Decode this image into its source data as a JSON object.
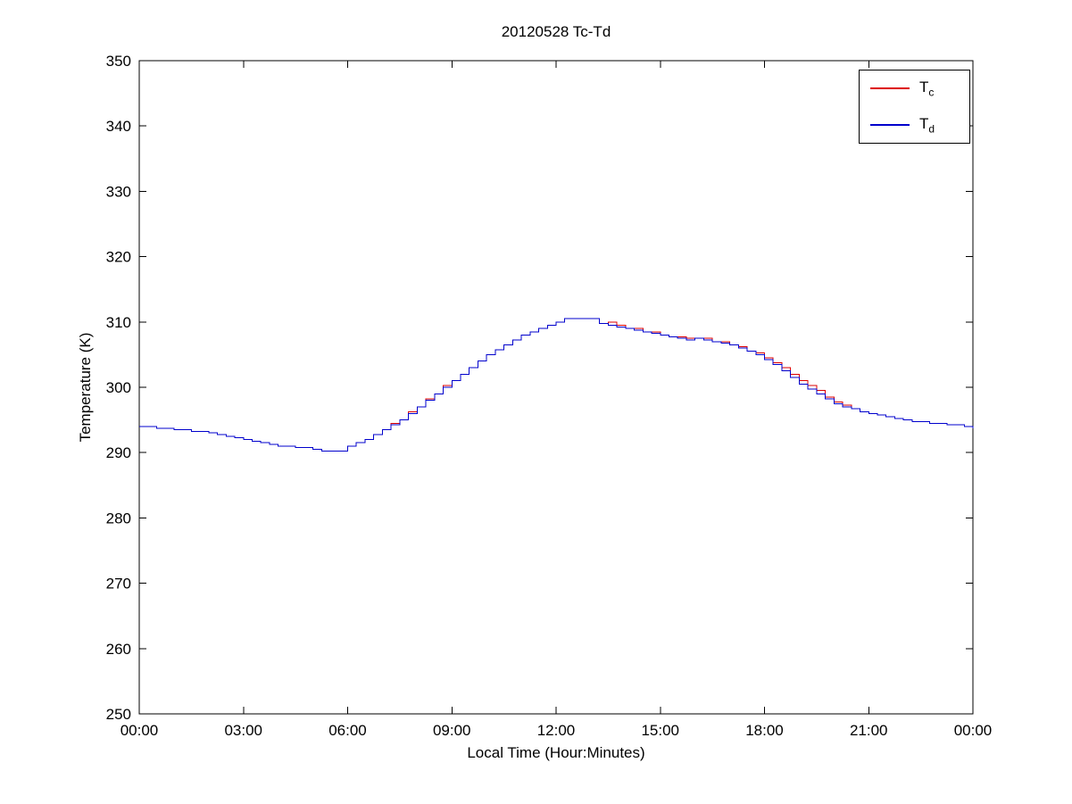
{
  "legend": {
    "entries": [
      {
        "main": "T",
        "sub": "c",
        "color": "#dd0000"
      },
      {
        "main": "T",
        "sub": "d",
        "color": "#0000cc"
      }
    ]
  },
  "chart_data": {
    "type": "line",
    "title": "20120528 Tc-Td",
    "xlabel": "Local Time (Hour:Minutes)",
    "ylabel": "Temperature (K)",
    "xlim": [
      0,
      24
    ],
    "ylim": [
      250,
      350
    ],
    "xticks": [
      0,
      3,
      6,
      9,
      12,
      15,
      18,
      21,
      24
    ],
    "xtick_labels": [
      "00:00",
      "03:00",
      "06:00",
      "09:00",
      "12:00",
      "15:00",
      "18:00",
      "21:00",
      "00:00"
    ],
    "yticks": [
      250,
      260,
      270,
      280,
      290,
      300,
      310,
      320,
      330,
      340,
      350
    ],
    "grid": false,
    "legend_position": "top-right",
    "x_hours": [
      0,
      0.25,
      0.5,
      0.75,
      1,
      1.25,
      1.5,
      1.75,
      2,
      2.25,
      2.5,
      2.75,
      3,
      3.25,
      3.5,
      3.75,
      4,
      4.25,
      4.5,
      4.75,
      5,
      5.25,
      5.5,
      5.75,
      6,
      6.25,
      6.5,
      6.75,
      7,
      7.25,
      7.5,
      7.75,
      8,
      8.25,
      8.5,
      8.75,
      9,
      9.25,
      9.5,
      9.75,
      10,
      10.25,
      10.5,
      10.75,
      11,
      11.25,
      11.5,
      11.75,
      12,
      12.25,
      12.5,
      12.75,
      13,
      13.25,
      13.5,
      13.75,
      14,
      14.25,
      14.5,
      14.75,
      15,
      15.25,
      15.5,
      15.75,
      16,
      16.25,
      16.5,
      16.75,
      17,
      17.25,
      17.5,
      17.75,
      18,
      18.25,
      18.5,
      18.75,
      19,
      19.25,
      19.5,
      19.75,
      20,
      20.25,
      20.5,
      20.75,
      21,
      21.25,
      21.5,
      21.75,
      22,
      22.25,
      22.5,
      22.75,
      23,
      23.25,
      23.5,
      23.75,
      24
    ],
    "series": [
      {
        "name": "Tc",
        "color": "#dd0000",
        "values": [
          294,
          294,
          293.75,
          293.75,
          293.5,
          293.5,
          293.25,
          293.25,
          293,
          292.75,
          292.5,
          292.25,
          292,
          291.75,
          291.5,
          291.25,
          291,
          291,
          290.75,
          290.75,
          290.5,
          290.25,
          290.25,
          290.25,
          291,
          291.5,
          292,
          292.75,
          293.5,
          294.5,
          295,
          296.25,
          297,
          298.25,
          299,
          300.25,
          301,
          302,
          303,
          304,
          305,
          305.75,
          306.5,
          307.25,
          308,
          308.5,
          309,
          309.5,
          310,
          310.5,
          310.5,
          310.5,
          310.5,
          309.75,
          310,
          309.5,
          309,
          309,
          308.5,
          308.5,
          308,
          307.75,
          307.75,
          307.5,
          307.5,
          307.5,
          307,
          307,
          306.5,
          306.25,
          305.5,
          305.25,
          304.5,
          303.75,
          303,
          302,
          301,
          300.25,
          299.5,
          298.5,
          297.75,
          297.25,
          296.75,
          296.25,
          296,
          295.75,
          295.5,
          295.25,
          295,
          294.75,
          294.75,
          294.5,
          294.5,
          294.25,
          294.25,
          294,
          293.75
        ]
      },
      {
        "name": "Td",
        "color": "#0000cc",
        "values": [
          294,
          294,
          293.75,
          293.75,
          293.5,
          293.5,
          293.25,
          293.25,
          293,
          292.75,
          292.5,
          292.25,
          292,
          291.75,
          291.5,
          291.25,
          291,
          291,
          290.75,
          290.75,
          290.5,
          290.25,
          290.25,
          290.25,
          291,
          291.5,
          292,
          292.75,
          293.5,
          294.25,
          295,
          296,
          297,
          298,
          299,
          300,
          301,
          302,
          303,
          304,
          305,
          305.75,
          306.5,
          307.25,
          308,
          308.5,
          309,
          309.5,
          310,
          310.5,
          310.5,
          310.5,
          310.5,
          309.75,
          309.5,
          309.25,
          309,
          308.75,
          308.5,
          308.25,
          308,
          307.75,
          307.5,
          307.25,
          307.5,
          307.25,
          307,
          306.75,
          306.5,
          306,
          305.5,
          305,
          304.25,
          303.5,
          302.5,
          301.5,
          300.5,
          299.75,
          299,
          298.25,
          297.5,
          297,
          296.75,
          296.25,
          296,
          295.75,
          295.5,
          295.25,
          295,
          294.75,
          294.75,
          294.5,
          294.5,
          294.25,
          294.25,
          294,
          293.75
        ]
      }
    ]
  }
}
